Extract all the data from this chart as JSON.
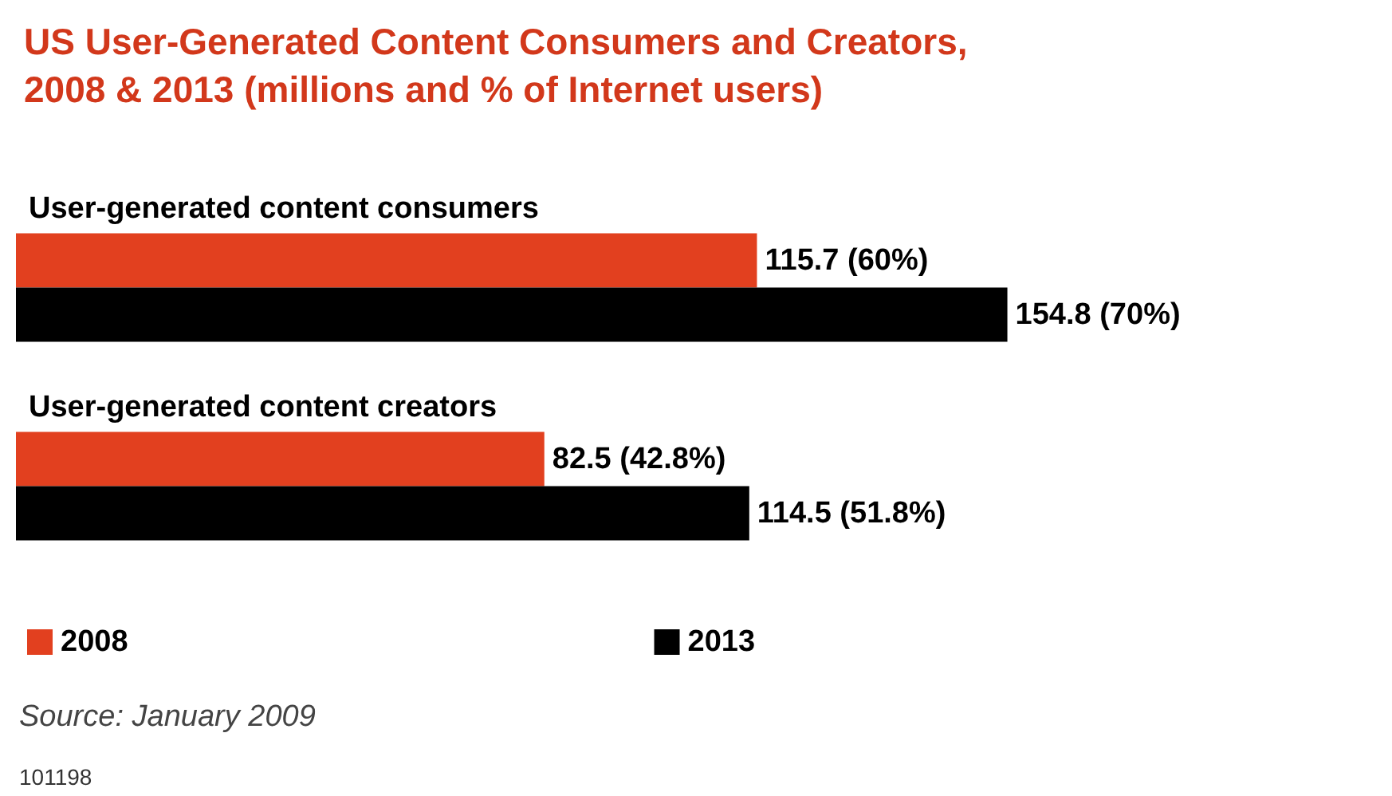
{
  "chart_data": {
    "type": "bar",
    "orientation": "horizontal",
    "title": "US User-Generated Content Consumers and Creators,\n2008 & 2013 (millions and % of Internet users)",
    "categories": [
      "User-generated content consumers",
      "User-generated content creators"
    ],
    "series": [
      {
        "name": "2008",
        "color": "#e2401f",
        "values": [
          115.7,
          82.5
        ],
        "value_labels": [
          "115.7 (60%)",
          "82.5 (42.8%)"
        ]
      },
      {
        "name": "2013",
        "color": "#000000",
        "values": [
          154.8,
          114.5
        ],
        "value_labels": [
          "154.8 (70%)",
          "114.5 (51.8%)"
        ]
      }
    ],
    "legend": "bottom left",
    "grid": false,
    "annotations": [
      "Source: January 2009",
      "101198"
    ]
  }
}
